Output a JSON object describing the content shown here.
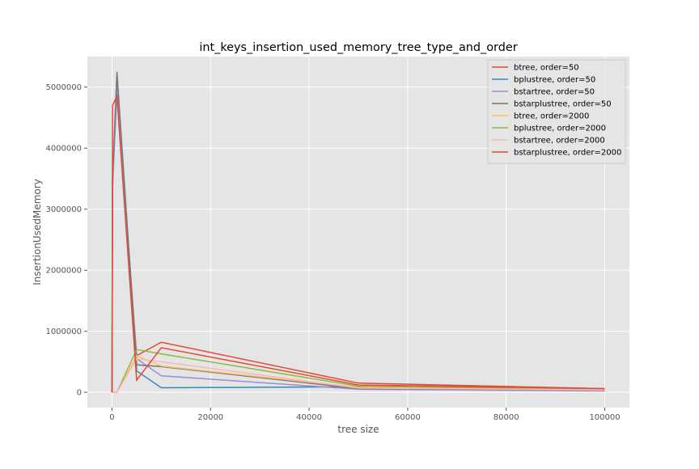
{
  "chart_data": {
    "type": "line",
    "title": "int_keys_insertion_used_memory_tree_type_and_order",
    "xlabel": "tree size",
    "ylabel": "InsertionUsedMemory",
    "xlim": [
      -5000,
      105000
    ],
    "ylim": [
      -250000,
      5500000
    ],
    "xticks": [
      0,
      20000,
      40000,
      60000,
      80000,
      100000
    ],
    "xtick_labels": [
      "0",
      "20000",
      "40000",
      "60000",
      "80000",
      "100000"
    ],
    "yticks": [
      0,
      1000000,
      2000000,
      3000000,
      4000000,
      5000000
    ],
    "ytick_labels": [
      "0",
      "1000000",
      "2000000",
      "3000000",
      "4000000",
      "5000000"
    ],
    "grid": true,
    "legend_position": "top-right",
    "x": [
      10,
      100,
      1000,
      5000,
      10000,
      50000,
      100000
    ],
    "series": [
      {
        "name": "btree, order=50",
        "color": "#E24A33",
        "values": [
          0,
          3500000,
          4900000,
          600000,
          820000,
          150000,
          60000
        ]
      },
      {
        "name": "bplustree, order=50",
        "color": "#348ABD",
        "values": [
          0,
          3400000,
          5100000,
          350000,
          75000,
          90000,
          50000
        ]
      },
      {
        "name": "bstartree, order=50",
        "color": "#988ED5",
        "values": [
          0,
          3300000,
          5000000,
          550000,
          270000,
          50000,
          20000
        ]
      },
      {
        "name": "bstarplustree, order=50",
        "color": "#777777",
        "values": [
          0,
          3500000,
          5250000,
          450000,
          420000,
          60000,
          40000
        ]
      },
      {
        "name": "btree, order=2000",
        "color": "#FBC15E",
        "values": [
          0,
          0,
          0,
          600000,
          430000,
          80000,
          40000
        ]
      },
      {
        "name": "bplustree, order=2000",
        "color": "#8EBA42",
        "values": [
          0,
          0,
          0,
          700000,
          630000,
          100000,
          50000
        ]
      },
      {
        "name": "bstartree, order=2000",
        "color": "#FFB5B8",
        "values": [
          0,
          0,
          0,
          550000,
          500000,
          70000,
          40000
        ]
      },
      {
        "name": "bstarplustree, order=2000",
        "color": "#E24A33",
        "values": [
          0,
          4700000,
          4850000,
          200000,
          730000,
          120000,
          60000
        ]
      }
    ]
  }
}
